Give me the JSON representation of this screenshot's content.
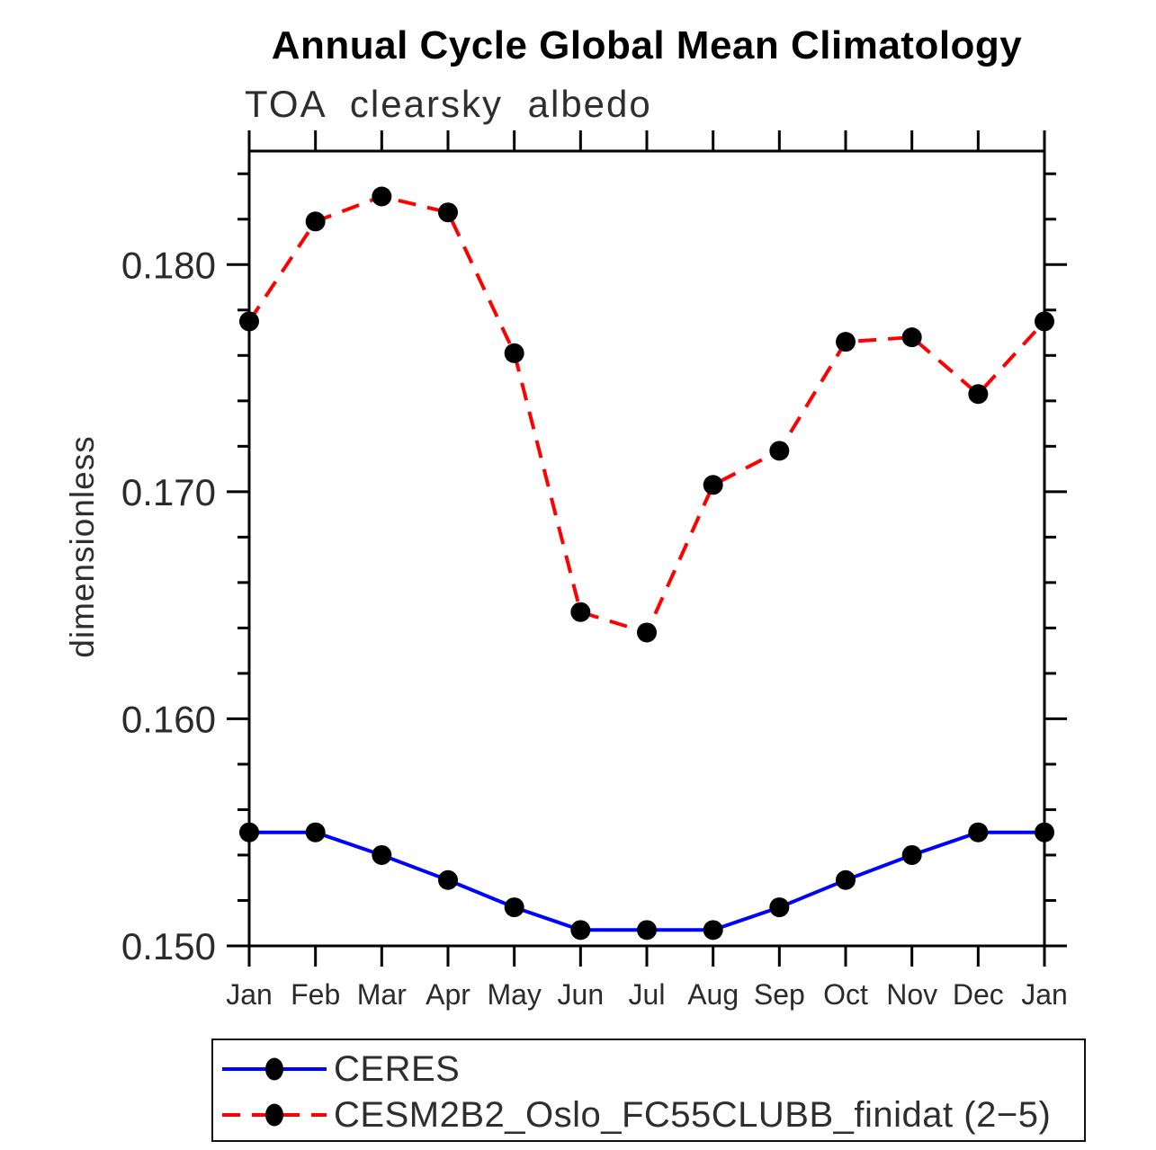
{
  "page": {
    "background": "#ffffff"
  },
  "chart_data": {
    "type": "line",
    "title": "Annual Cycle Global Mean Climatology",
    "subtitle": "TOA clearsky albedo",
    "ylabel": "dimensionless",
    "xlabel": "",
    "x_categories": [
      "Jan",
      "Feb",
      "Mar",
      "Apr",
      "May",
      "Jun",
      "Jul",
      "Aug",
      "Sep",
      "Oct",
      "Nov",
      "Dec",
      "Jan"
    ],
    "ylim": [
      0.15,
      0.185
    ],
    "ytick_values": [
      0.15,
      0.16,
      0.17,
      0.18
    ],
    "ytick_labels": [
      "0.150",
      "0.160",
      "0.170",
      "0.180"
    ],
    "yminor_step": 0.002,
    "grid": false,
    "legend_position": "bottom-left-box",
    "axis_color": "#000000",
    "series": [
      {
        "name": "CERES",
        "color": "#0000ff",
        "line_style": "solid",
        "line_width": 4,
        "marker": "filled-circle",
        "marker_color": "#000000",
        "values": [
          0.155,
          0.155,
          0.154,
          0.1529,
          0.1517,
          0.1507,
          0.1507,
          0.1507,
          0.1517,
          0.1529,
          0.154,
          0.155,
          0.155
        ]
      },
      {
        "name": "CESM2B2_Oslo_FC55CLUBB_finidat (2−5)",
        "color": "#ff0000",
        "line_style": "dashed",
        "line_width": 4,
        "marker": "filled-circle",
        "marker_color": "#000000",
        "values": [
          0.1775,
          0.1819,
          0.183,
          0.1823,
          0.1761,
          0.1647,
          0.1638,
          0.1703,
          0.1718,
          0.1766,
          0.1768,
          0.1743,
          0.1775
        ]
      }
    ]
  }
}
